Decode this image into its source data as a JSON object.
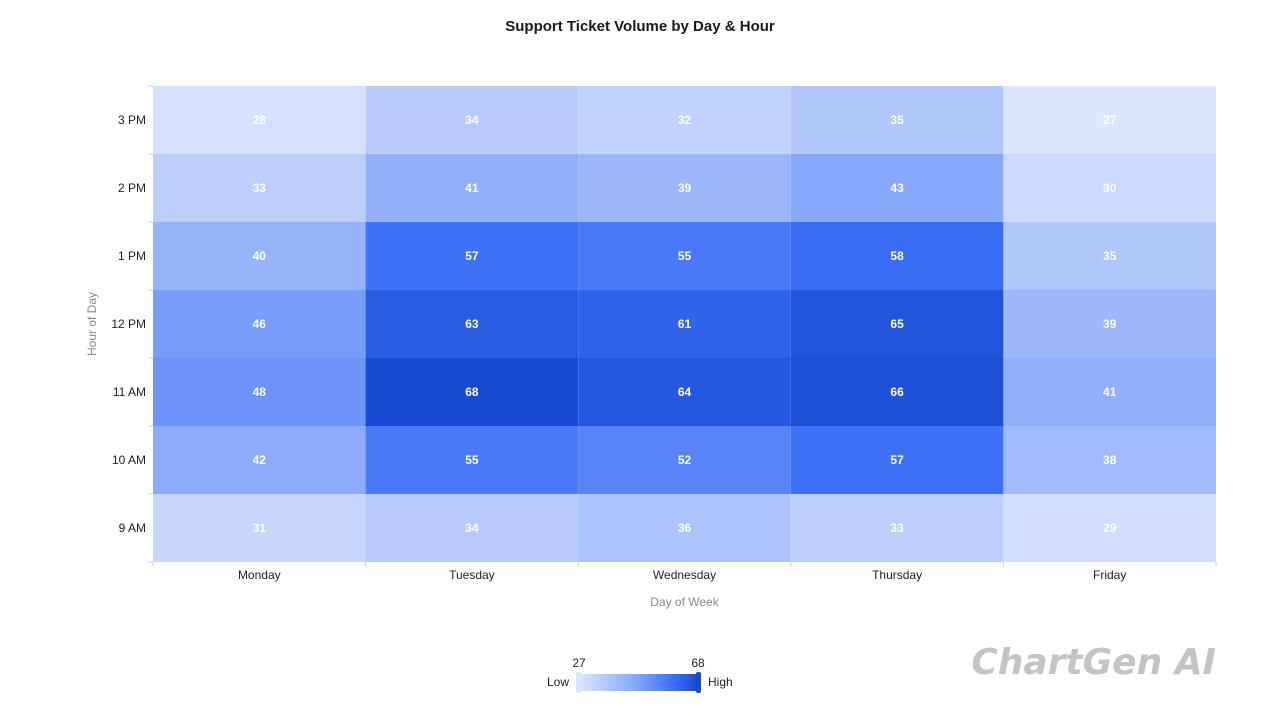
{
  "chart_data": {
    "type": "heatmap",
    "title": "Support Ticket Volume by Day & Hour",
    "xlabel": "Day of Week",
    "ylabel": "Hour of Day",
    "x": [
      "Monday",
      "Tuesday",
      "Wednesday",
      "Thursday",
      "Friday"
    ],
    "y": [
      "9 AM",
      "10 AM",
      "11 AM",
      "12 PM",
      "1 PM",
      "2 PM",
      "3 PM"
    ],
    "values": [
      [
        31,
        34,
        36,
        33,
        29
      ],
      [
        42,
        55,
        52,
        57,
        38
      ],
      [
        48,
        68,
        64,
        66,
        41
      ],
      [
        46,
        63,
        61,
        65,
        39
      ],
      [
        40,
        57,
        55,
        58,
        35
      ],
      [
        33,
        41,
        39,
        43,
        30
      ],
      [
        28,
        34,
        32,
        35,
        27
      ]
    ],
    "zmin": 27,
    "zmax": 68,
    "colorscale": {
      "low": "#dbe6fd",
      "mid": "#3b6ef7",
      "high": "#1849d1"
    },
    "data_labels": true,
    "grid": false,
    "legend": {
      "placement": "bottom-center",
      "low_label": "Low",
      "high_label": "High",
      "min_label": "27",
      "max_label": "68"
    }
  },
  "watermark": "ChartGen AI"
}
